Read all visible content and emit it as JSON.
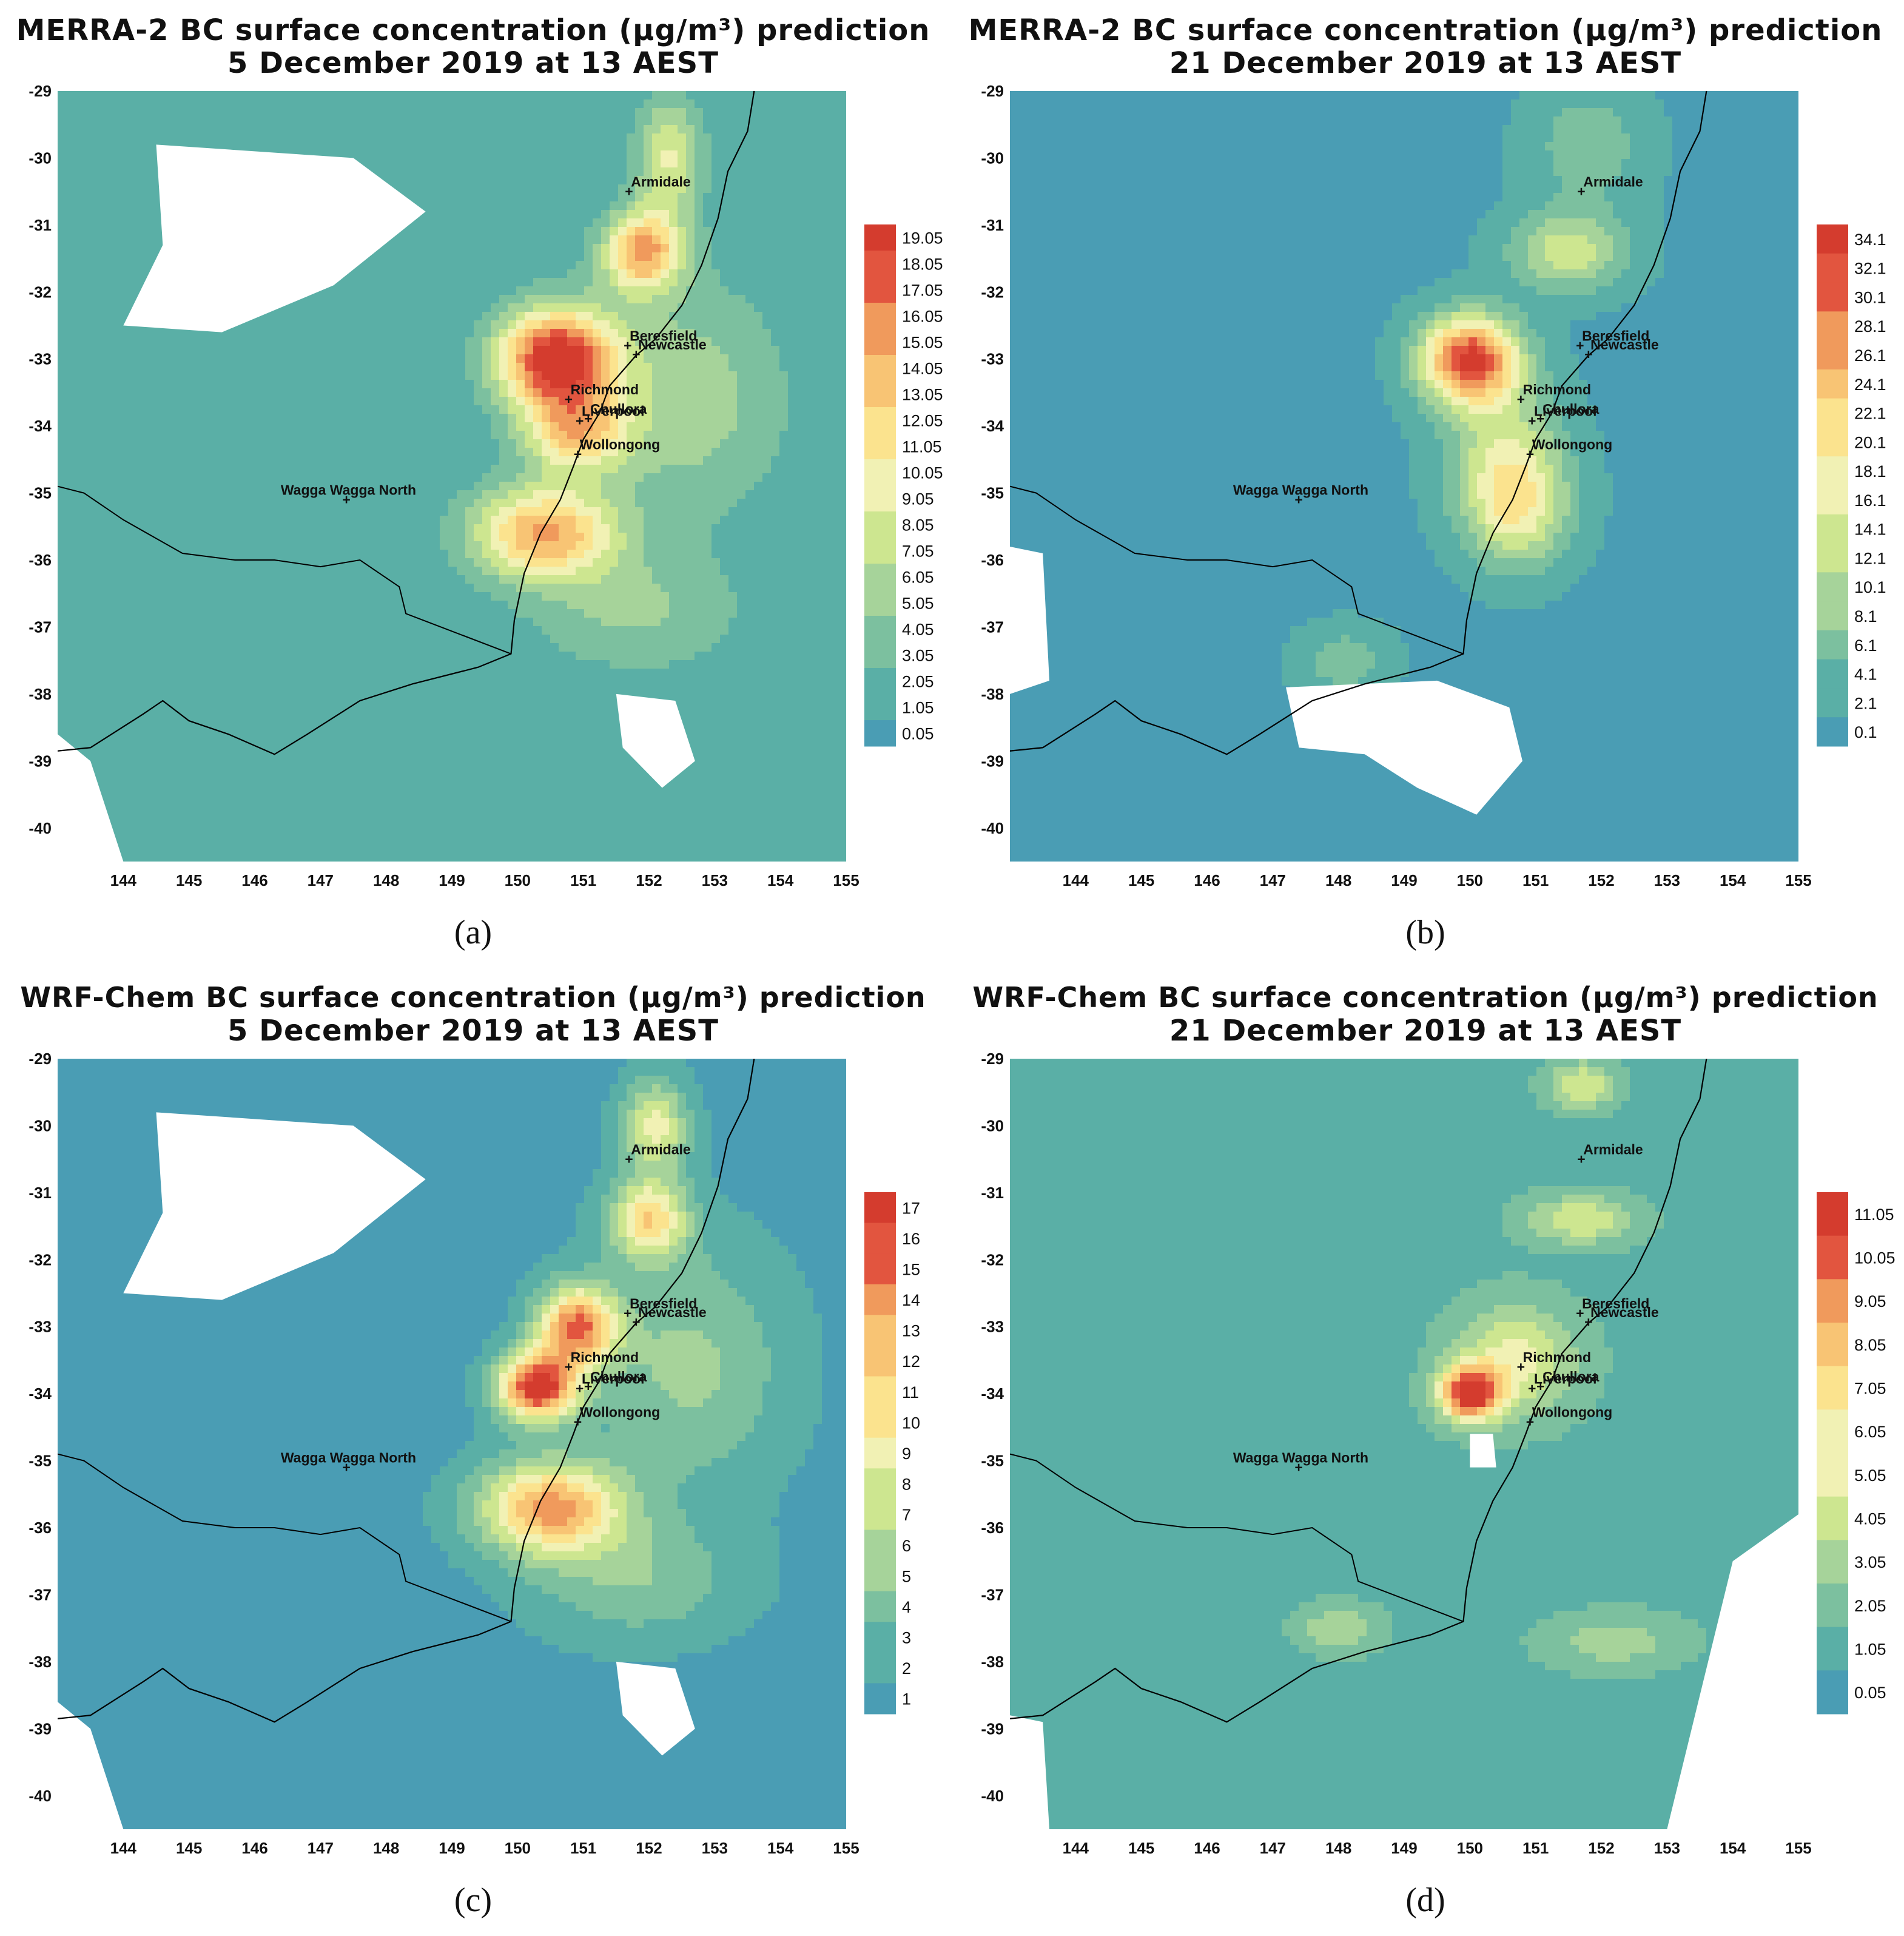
{
  "panels": [
    {
      "id": "a",
      "title_line1": "MERRA-2 BC surface concentration (µg/m³) prediction",
      "title_line2": "5 December 2019 at 13 AEST",
      "caption": "(a)",
      "colorbar_ticks": [
        "19.05",
        "18.05",
        "17.05",
        "16.05",
        "15.05",
        "14.05",
        "13.05",
        "12.05",
        "11.05",
        "10.05",
        "9.05",
        "8.05",
        "7.05",
        "6.05",
        "5.05",
        "4.05",
        "3.05",
        "2.05",
        "1.05",
        "0.05"
      ],
      "colorbar_range": [
        0.05,
        20.05
      ],
      "background_level": 1.2,
      "hotspots": [
        {
          "lon": 150.6,
          "lat": -33.0,
          "value": 20.0,
          "r_lon": 0.9,
          "r_lat": 0.75
        },
        {
          "lon": 150.9,
          "lat": -34.1,
          "value": 11.0,
          "r_lon": 0.8,
          "r_lat": 0.6
        },
        {
          "lon": 150.4,
          "lat": -35.6,
          "value": 14.0,
          "r_lon": 1.1,
          "r_lat": 0.7
        },
        {
          "lon": 151.9,
          "lat": -31.4,
          "value": 14.0,
          "r_lon": 0.6,
          "r_lat": 0.6
        },
        {
          "lon": 152.3,
          "lat": -30.0,
          "value": 8.0,
          "r_lon": 0.5,
          "r_lat": 0.9
        },
        {
          "lon": 152.6,
          "lat": -33.6,
          "value": 5.0,
          "r_lon": 1.5,
          "r_lat": 1.8
        },
        {
          "lon": 151.8,
          "lat": -36.8,
          "value": 4.0,
          "r_lon": 1.6,
          "r_lat": 0.9
        }
      ]
    },
    {
      "id": "b",
      "title_line1": "MERRA-2 BC surface concentration (µg/m³) prediction",
      "title_line2": "21 December 2019 at 13 AEST",
      "caption": "(b)",
      "colorbar_ticks": [
        "34.1",
        "32.1",
        "30.1",
        "28.1",
        "26.1",
        "24.1",
        "22.1",
        "20.1",
        "18.1",
        "16.1",
        "14.1",
        "12.1",
        "10.1",
        "8.1",
        "6.1",
        "4.1",
        "2.1",
        "0.1"
      ],
      "colorbar_range": [
        0.1,
        36.1
      ],
      "background_level": 1.0,
      "hotspots": [
        {
          "lon": 150.0,
          "lat": -33.0,
          "value": 34.0,
          "r_lon": 0.75,
          "r_lat": 0.65
        },
        {
          "lon": 150.7,
          "lat": -35.2,
          "value": 18.0,
          "r_lon": 0.8,
          "r_lat": 0.9
        },
        {
          "lon": 151.5,
          "lat": -31.4,
          "value": 14.0,
          "r_lon": 0.9,
          "r_lat": 0.6
        },
        {
          "lon": 151.8,
          "lat": -29.8,
          "value": 7.0,
          "r_lon": 0.9,
          "r_lat": 0.9
        },
        {
          "lon": 148.1,
          "lat": -37.5,
          "value": 7.0,
          "r_lon": 0.7,
          "r_lat": 0.5
        },
        {
          "lon": 150.5,
          "lat": -34.2,
          "value": 10.0,
          "r_lon": 0.9,
          "r_lat": 1.0
        }
      ]
    },
    {
      "id": "c",
      "title_line1": "WRF-Chem BC surface concentration (µg/m³) prediction",
      "title_line2": "5 December 2019 at 13 AEST",
      "caption": "(c)",
      "colorbar_ticks": [
        "17",
        "16",
        "15",
        "14",
        "13",
        "12",
        "11",
        "10",
        "9",
        "8",
        "7",
        "6",
        "5",
        "4",
        "3",
        "2",
        "1"
      ],
      "colorbar_range": [
        1,
        18
      ],
      "background_level": 1.2,
      "hotspots": [
        {
          "lon": 150.9,
          "lat": -33.0,
          "value": 14.0,
          "r_lon": 0.6,
          "r_lat": 0.6
        },
        {
          "lon": 150.3,
          "lat": -33.9,
          "value": 17.0,
          "r_lon": 0.6,
          "r_lat": 0.5
        },
        {
          "lon": 150.5,
          "lat": -35.7,
          "value": 13.0,
          "r_lon": 1.1,
          "r_lat": 0.7
        },
        {
          "lon": 152.0,
          "lat": -31.4,
          "value": 10.0,
          "r_lon": 0.6,
          "r_lat": 0.6
        },
        {
          "lon": 152.1,
          "lat": -30.0,
          "value": 8.0,
          "r_lon": 0.5,
          "r_lat": 0.7
        },
        {
          "lon": 152.6,
          "lat": -33.6,
          "value": 4.5,
          "r_lon": 1.5,
          "r_lat": 1.8
        },
        {
          "lon": 151.8,
          "lat": -36.8,
          "value": 3.8,
          "r_lon": 1.6,
          "r_lat": 0.9
        }
      ]
    },
    {
      "id": "d",
      "title_line1": "WRF-Chem BC surface concentration (µg/m³) prediction",
      "title_line2": "21 December 2019 at 13 AEST",
      "caption": "(d)",
      "colorbar_ticks": [
        "11.05",
        "10.05",
        "9.05",
        "8.05",
        "7.05",
        "6.05",
        "5.05",
        "4.05",
        "3.05",
        "2.05",
        "1.05",
        "0.05"
      ],
      "colorbar_range": [
        0.05,
        12.05
      ],
      "background_level": 1.5,
      "hotspots": [
        {
          "lon": 150.0,
          "lat": -34.0,
          "value": 11.0,
          "r_lon": 0.45,
          "r_lat": 0.4
        },
        {
          "lon": 150.7,
          "lat": -33.5,
          "value": 4.5,
          "r_lon": 0.9,
          "r_lat": 0.8
        },
        {
          "lon": 151.7,
          "lat": -31.4,
          "value": 4.0,
          "r_lon": 0.8,
          "r_lat": 0.35
        },
        {
          "lon": 151.7,
          "lat": -29.4,
          "value": 4.0,
          "r_lon": 0.5,
          "r_lat": 0.35
        },
        {
          "lon": 148.0,
          "lat": -37.5,
          "value": 2.6,
          "r_lon": 0.6,
          "r_lat": 0.35
        },
        {
          "lon": 152.2,
          "lat": -37.7,
          "value": 2.4,
          "r_lon": 1.0,
          "r_lat": 0.4
        }
      ]
    }
  ],
  "map_axes": {
    "lon_ticks": [
      "144",
      "145",
      "146",
      "147",
      "148",
      "149",
      "150",
      "151",
      "152",
      "153",
      "154",
      "155"
    ],
    "lat_ticks": [
      "-29",
      "-30",
      "-31",
      "-32",
      "-33",
      "-34",
      "-35",
      "-36",
      "-37",
      "-38",
      "-39",
      "-40"
    ],
    "lon_range": [
      143.0,
      155.0
    ],
    "lat_range": [
      -40.5,
      -29.0
    ]
  },
  "locations": [
    {
      "name": "Armidale",
      "lon": 151.67,
      "lat": -30.5
    },
    {
      "name": "Beresfield",
      "lon": 151.65,
      "lat": -32.8
    },
    {
      "name": "Newcastle",
      "lon": 151.78,
      "lat": -32.93
    },
    {
      "name": "Richmond",
      "lon": 150.75,
      "lat": -33.6
    },
    {
      "name": "Chullora",
      "lon": 151.05,
      "lat": -33.89
    },
    {
      "name": "Liverpool",
      "lon": 150.92,
      "lat": -33.92
    },
    {
      "name": "Wollongong",
      "lon": 150.89,
      "lat": -34.42
    },
    {
      "name": "Wagga Wagga North",
      "lon": 147.37,
      "lat": -35.1
    }
  ],
  "colors": {
    "ramp": [
      "#4a9db4",
      "#5aafa6",
      "#7cc09f",
      "#a6d39a",
      "#cde690",
      "#f1f1b4",
      "#fbe38e",
      "#f8c474",
      "#f09a5c",
      "#e2553f",
      "#d43c2e"
    ],
    "water_blank": "#ffffff",
    "coastline": "#000000"
  }
}
